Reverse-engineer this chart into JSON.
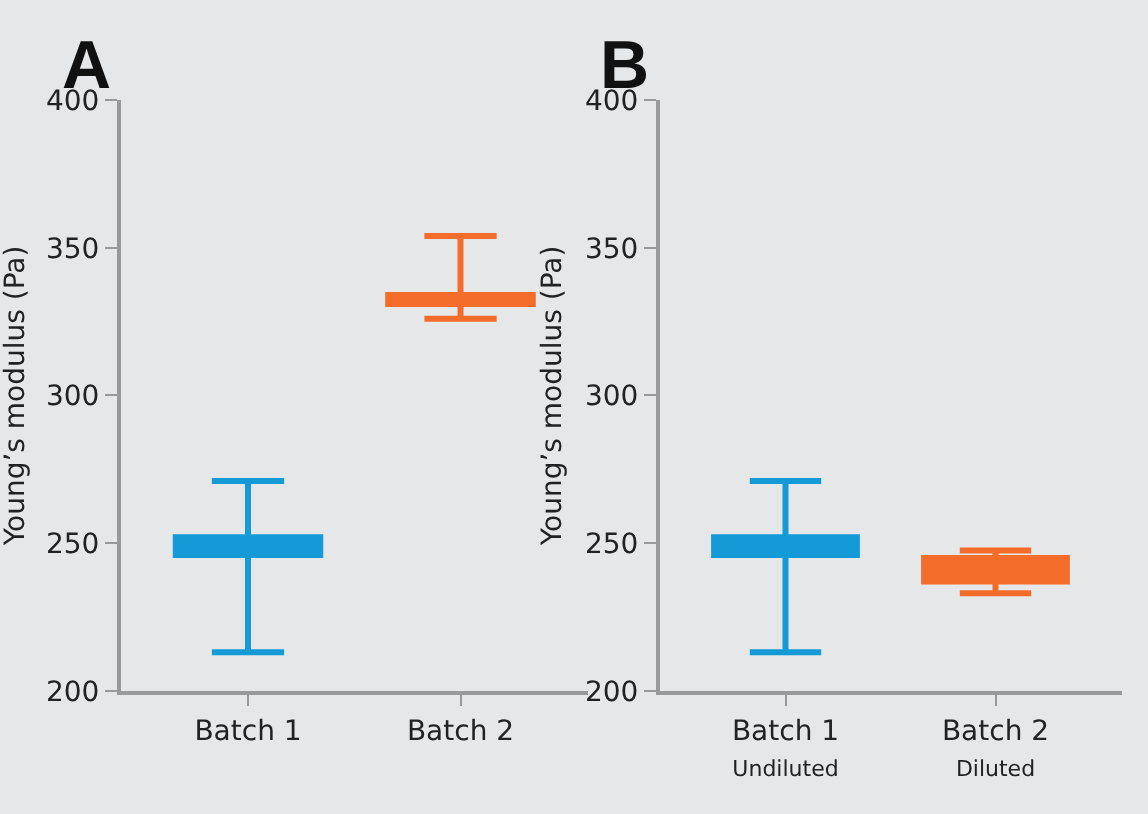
{
  "chart_data": [
    {
      "type": "box",
      "title": "A",
      "ylabel": "Young’s modulus (Pa)",
      "categories": [
        "Batch 1",
        "Batch 2"
      ],
      "colors": [
        "#149bd7",
        "#f36c2a"
      ],
      "boxes": [
        {
          "low": 213,
          "q1": 246,
          "median": 249,
          "q3": 252,
          "high": 271
        },
        {
          "low": 326,
          "q1": 331,
          "median": 332.5,
          "q3": 334,
          "high": 354
        }
      ],
      "ylim": [
        200,
        400
      ],
      "yticks": [
        200,
        250,
        300,
        350,
        400
      ],
      "grid": false,
      "legend": false
    },
    {
      "type": "box",
      "title": "B",
      "ylabel": "Young’s modulus (Pa)",
      "categories": [
        "Batch 1\nUndiluted",
        "Batch 2\nDiluted"
      ],
      "colors": [
        "#149bd7",
        "#f36c2a"
      ],
      "boxes": [
        {
          "low": 213,
          "q1": 246,
          "median": 249,
          "q3": 252,
          "high": 271
        },
        {
          "low": 233,
          "q1": 237,
          "median": 241,
          "q3": 245,
          "high": 247.5
        }
      ],
      "ylim": [
        200,
        400
      ],
      "yticks": [
        200,
        250,
        300,
        350,
        400
      ],
      "grid": false,
      "legend": false
    }
  ]
}
